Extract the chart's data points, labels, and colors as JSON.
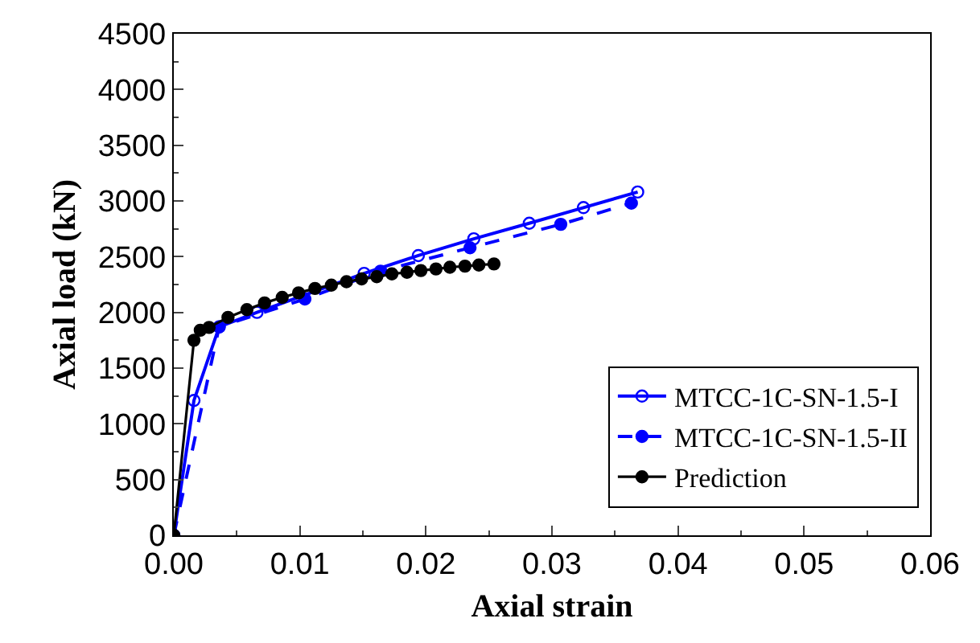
{
  "chart_data": {
    "type": "line",
    "xlabel": "Axial strain",
    "ylabel": "Axial load (kN)",
    "xlim": [
      0,
      0.06
    ],
    "xticks": [
      {
        "value": 0,
        "label": "0.00"
      },
      0.01,
      0.02,
      0.03,
      0.04,
      0.05,
      0.06
    ],
    "ylim": [
      0,
      4500
    ],
    "yticks": [
      0,
      500,
      1000,
      1500,
      2000,
      2500,
      3000,
      3500,
      4000,
      4500
    ],
    "grid": false,
    "legend": "bottom right",
    "series": [
      {
        "name": "MTCC-1C-SN-1.5-I",
        "color": "#0000ff",
        "marker": "circle-open",
        "line_style": "solid",
        "x": [
          0,
          0.0016,
          0.0036,
          0.0066,
          0.0151,
          0.0194,
          0.0238,
          0.0282,
          0.0325,
          0.0368
        ],
        "values": [
          0,
          1210,
          1870,
          2000,
          2350,
          2510,
          2660,
          2800,
          2940,
          3080
        ]
      },
      {
        "name": "MTCC-1C-SN-1.5-II",
        "color": "#0000ff",
        "marker": "circle",
        "line_style": "dashed",
        "x": [
          0,
          0.0036,
          0.0104,
          0.0164,
          0.0235,
          0.0307,
          0.0363
        ],
        "values": [
          0,
          1870,
          2120,
          2370,
          2580,
          2790,
          2980
        ]
      },
      {
        "name": "Prediction",
        "color": "#000000",
        "marker": "circle",
        "line_style": "solid",
        "x": [
          0,
          0.0016,
          0.0021,
          0.0028,
          0.0043,
          0.0058,
          0.0072,
          0.0086,
          0.0099,
          0.0112,
          0.0125,
          0.0137,
          0.0149,
          0.0161,
          0.0173,
          0.0185,
          0.0196,
          0.0208,
          0.0219,
          0.0231,
          0.0242,
          0.0254
        ],
        "values": [
          0,
          1750,
          1840,
          1865,
          1955,
          2025,
          2085,
          2135,
          2175,
          2215,
          2245,
          2275,
          2300,
          2320,
          2345,
          2360,
          2375,
          2390,
          2405,
          2415,
          2425,
          2435
        ]
      }
    ]
  }
}
